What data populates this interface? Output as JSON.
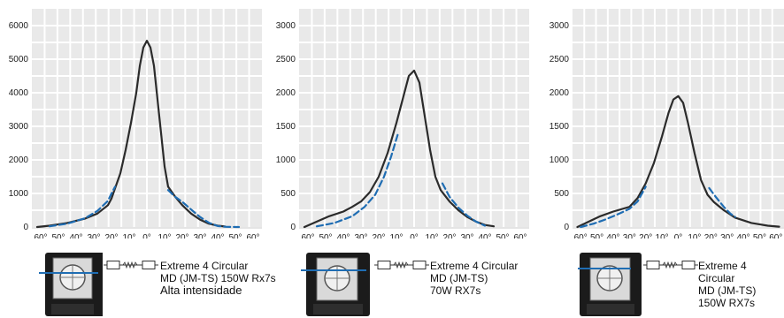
{
  "chart_data": [
    {
      "type": "line",
      "ylim": [
        0,
        6500
      ],
      "yticks": [
        0,
        1000,
        2000,
        3000,
        4000,
        5000,
        6000
      ],
      "xticks": [
        "60°",
        "50°",
        "40°",
        "30°",
        "20°",
        "10°",
        "0°",
        "10°",
        "20°",
        "30°",
        "40°",
        "50°",
        "60°"
      ],
      "series": [
        {
          "style": "solid",
          "color": "#2b2b2b",
          "points": [
            [
              -62,
              0
            ],
            [
              -55,
              40
            ],
            [
              -45,
              120
            ],
            [
              -35,
              250
            ],
            [
              -28,
              400
            ],
            [
              -22,
              650
            ],
            [
              -20,
              850
            ],
            [
              -18,
              1150
            ],
            [
              -15,
              1600
            ],
            [
              -12,
              2300
            ],
            [
              -9,
              3100
            ],
            [
              -6,
              4000
            ],
            [
              -4,
              4800
            ],
            [
              -2,
              5350
            ],
            [
              0,
              5550
            ],
            [
              2,
              5350
            ],
            [
              4,
              4800
            ],
            [
              6,
              3800
            ],
            [
              8,
              2800
            ],
            [
              10,
              1800
            ],
            [
              12,
              1200
            ],
            [
              16,
              900
            ],
            [
              20,
              650
            ],
            [
              25,
              400
            ],
            [
              30,
              220
            ],
            [
              35,
              100
            ],
            [
              40,
              40
            ],
            [
              44,
              15
            ]
          ]
        },
        {
          "style": "dashed",
          "color": "#1f6db3",
          "points": [
            [
              -55,
              20
            ],
            [
              -45,
              100
            ],
            [
              -35,
              260
            ],
            [
              -28,
              480
            ],
            [
              -22,
              780
            ],
            [
              -20,
              1000
            ],
            [
              -18,
              1200
            ]
          ]
        },
        {
          "style": "dashed",
          "color": "#1f6db3",
          "points": [
            [
              12,
              1100
            ],
            [
              16,
              900
            ],
            [
              20,
              750
            ],
            [
              25,
              520
            ],
            [
              30,
              300
            ],
            [
              35,
              130
            ],
            [
              40,
              30
            ],
            [
              45,
              5
            ],
            [
              52,
              0
            ]
          ]
        }
      ],
      "caption": [
        "Extreme 4 Circular",
        "MD (JM-TS) 150W Rx7s",
        "Alta intensidade"
      ]
    },
    {
      "type": "line",
      "ylim": [
        0,
        3250
      ],
      "yticks": [
        0,
        500,
        1000,
        1500,
        2000,
        2500,
        3000
      ],
      "xticks": [
        "60°",
        "50°",
        "40°",
        "30°",
        "20°",
        "10°",
        "0°",
        "10°",
        "20°",
        "30°",
        "40°",
        "50°",
        "60°"
      ],
      "series": [
        {
          "style": "solid",
          "color": "#2b2b2b",
          "points": [
            [
              -62,
              0
            ],
            [
              -55,
              80
            ],
            [
              -48,
              160
            ],
            [
              -40,
              230
            ],
            [
              -35,
              300
            ],
            [
              -30,
              380
            ],
            [
              -25,
              520
            ],
            [
              -20,
              750
            ],
            [
              -15,
              1100
            ],
            [
              -10,
              1550
            ],
            [
              -6,
              1950
            ],
            [
              -3,
              2250
            ],
            [
              0,
              2330
            ],
            [
              3,
              2150
            ],
            [
              6,
              1650
            ],
            [
              9,
              1150
            ],
            [
              12,
              750
            ],
            [
              15,
              550
            ],
            [
              20,
              380
            ],
            [
              25,
              250
            ],
            [
              30,
              150
            ],
            [
              35,
              80
            ],
            [
              40,
              30
            ],
            [
              45,
              10
            ]
          ]
        },
        {
          "style": "dashed",
          "color": "#1f6db3",
          "points": [
            [
              -55,
              10
            ],
            [
              -45,
              60
            ],
            [
              -35,
              160
            ],
            [
              -28,
              300
            ],
            [
              -22,
              480
            ],
            [
              -17,
              750
            ],
            [
              -13,
              1050
            ],
            [
              -9,
              1400
            ]
          ]
        },
        {
          "style": "dashed",
          "color": "#1f6db3",
          "points": [
            [
              16,
              650
            ],
            [
              20,
              450
            ],
            [
              25,
              290
            ],
            [
              30,
              170
            ],
            [
              35,
              80
            ],
            [
              40,
              20
            ]
          ]
        }
      ],
      "caption": [
        "Extreme 4 Circular",
        "MD (JM-TS)",
        "70W RX7s"
      ]
    },
    {
      "type": "line",
      "ylim": [
        0,
        3250
      ],
      "yticks": [
        0,
        500,
        1000,
        1500,
        2000,
        2500,
        3000
      ],
      "xticks": [
        "60°",
        "50°",
        "40°",
        "30°",
        "20°",
        "10°",
        "0°",
        "10°",
        "20°",
        "30°",
        "40°",
        "50°",
        "60°"
      ],
      "series": [
        {
          "style": "solid",
          "color": "#2b2b2b",
          "points": [
            [
              -62,
              0
            ],
            [
              -55,
              80
            ],
            [
              -48,
              160
            ],
            [
              -40,
              230
            ],
            [
              -30,
              300
            ],
            [
              -25,
              430
            ],
            [
              -20,
              650
            ],
            [
              -15,
              950
            ],
            [
              -10,
              1350
            ],
            [
              -6,
              1700
            ],
            [
              -3,
              1900
            ],
            [
              0,
              1950
            ],
            [
              3,
              1850
            ],
            [
              6,
              1550
            ],
            [
              10,
              1100
            ],
            [
              14,
              700
            ],
            [
              18,
              480
            ],
            [
              22,
              370
            ],
            [
              28,
              250
            ],
            [
              35,
              140
            ],
            [
              45,
              60
            ],
            [
              55,
              20
            ],
            [
              62,
              5
            ]
          ]
        },
        {
          "style": "dashed",
          "color": "#1f6db3",
          "points": [
            [
              -60,
              0
            ],
            [
              -52,
              50
            ],
            [
              -45,
              110
            ],
            [
              -38,
              180
            ],
            [
              -30,
              270
            ],
            [
              -25,
              380
            ],
            [
              -20,
              600
            ]
          ]
        },
        {
          "style": "dashed",
          "color": "#1f6db3",
          "points": [
            [
              19,
              580
            ],
            [
              23,
              450
            ],
            [
              28,
              300
            ],
            [
              32,
              200
            ],
            [
              35,
              150
            ]
          ]
        }
      ],
      "caption": [
        "Extreme 4 Circular",
        "MD (JM-TS)",
        "150W RX7s"
      ]
    }
  ]
}
